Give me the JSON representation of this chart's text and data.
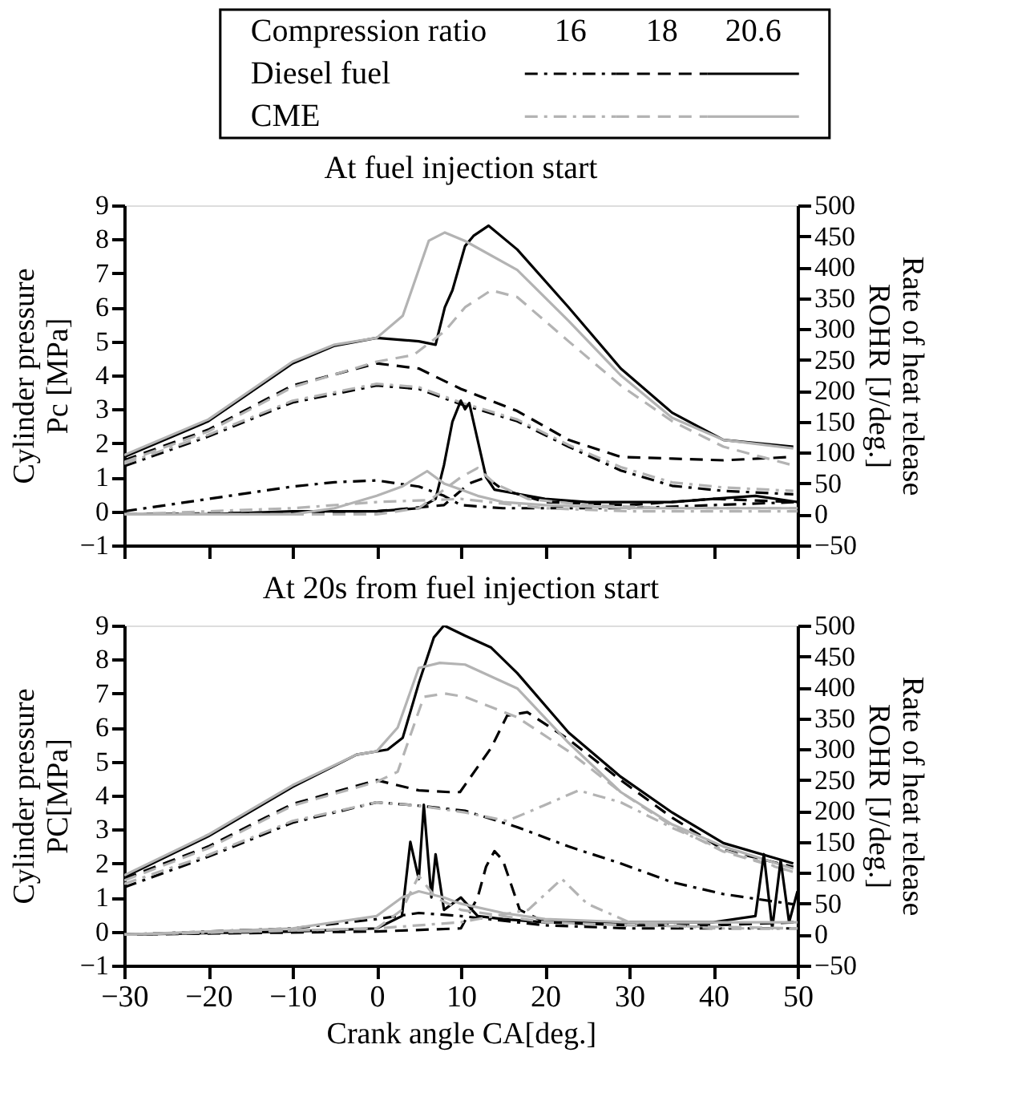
{
  "chart_data": [
    {
      "type": "line",
      "title": "At fuel injection start",
      "ylabel": "Cylinder pressure\nPc [MPa]",
      "y2label": "Rate of heat release\nROHR [J/deg.]",
      "legend_title": "Compression ratio",
      "annotations": [
        "16",
        "18",
        "20.6",
        "Diesel fuel",
        "CME"
      ],
      "tick_labels": "y",
      "grid": false,
      "xlim": [
        -30,
        50
      ],
      "xticks": [
        -30,
        -20,
        -10,
        0,
        10,
        20,
        30,
        40,
        50
      ],
      "ylim": [
        -1,
        9
      ],
      "yticks": [
        -1,
        0,
        1,
        2,
        3,
        4,
        5,
        6,
        7,
        8,
        9
      ],
      "y2lim": [
        -50,
        500
      ],
      "y2ticks": [
        -50,
        0,
        50,
        100,
        150,
        200,
        250,
        300,
        350,
        400,
        450,
        500
      ],
      "series": [
        {
          "color": "#000000",
          "line_style": "dashdot",
          "x": [
            -30,
            -20,
            -10,
            0,
            5,
            10,
            16.7,
            22.8,
            29,
            35.1,
            41.2,
            49.5
          ],
          "values": [
            1.33,
            2.2,
            3.2,
            3.7,
            3.6,
            3.15,
            2.65,
            1.9,
            1.2,
            0.75,
            0.6,
            0.5
          ]
        },
        {
          "color": "#000000",
          "line_style": "dashed",
          "x": [
            -30,
            -20,
            -10,
            0,
            5,
            10,
            16.7,
            22.8,
            29,
            35.1,
            41.2,
            49.5
          ],
          "values": [
            1.5,
            2.4,
            3.7,
            4.35,
            4.2,
            3.6,
            2.95,
            2.1,
            1.6,
            1.55,
            1.5,
            1.6
          ]
        },
        {
          "color": "#000000",
          "line_style": "solid",
          "x": [
            -30,
            -20,
            -10,
            -5,
            0,
            5,
            7,
            8.1,
            9,
            10.5,
            11.5,
            13.3,
            16.7,
            22.8,
            29,
            35.1,
            41.2,
            49.5
          ],
          "values": [
            1.6,
            2.65,
            4.35,
            4.87,
            5.1,
            5.0,
            4.9,
            6.0,
            6.5,
            7.8,
            8.1,
            8.4,
            7.7,
            6.0,
            4.2,
            2.9,
            2.1,
            1.9
          ]
        },
        {
          "color": "#b3b3b3",
          "line_style": "dashdot",
          "x": [
            -30,
            -20,
            -10,
            0,
            5,
            10,
            16.7,
            22.8,
            29,
            35.1,
            41.2,
            49.5
          ],
          "values": [
            1.4,
            2.25,
            3.25,
            3.75,
            3.65,
            3.2,
            2.7,
            1.95,
            1.3,
            0.85,
            0.7,
            0.6
          ]
        },
        {
          "color": "#b3b3b3",
          "line_style": "dashed",
          "x": [
            -30,
            -20,
            -10,
            0,
            4.4,
            8.1,
            10.5,
            13.6,
            16.7,
            22.8,
            29,
            35.1,
            41.2,
            49.5
          ],
          "values": [
            1.45,
            2.35,
            3.65,
            4.4,
            4.6,
            5.3,
            6.0,
            6.5,
            6.3,
            5.0,
            3.7,
            2.65,
            1.9,
            1.35
          ]
        },
        {
          "color": "#b3b3b3",
          "line_style": "solid",
          "x": [
            -30,
            -20,
            -10,
            -5,
            0,
            3.1,
            6.2,
            8.1,
            10.5,
            16.7,
            22.8,
            29,
            35.1,
            41.2,
            49.5
          ],
          "values": [
            1.65,
            2.7,
            4.4,
            4.9,
            5.1,
            5.75,
            7.96,
            8.2,
            7.95,
            7.1,
            5.6,
            4.0,
            2.75,
            2.1,
            1.85
          ]
        },
        {
          "axis": "y2",
          "color": "#000000",
          "line_style": "dashdot",
          "x": [
            -30,
            -20,
            -10,
            -5,
            0,
            5,
            8,
            10,
            15,
            20,
            30,
            40,
            50
          ],
          "values": [
            5,
            25,
            45,
            52,
            55,
            45,
            30,
            15,
            10,
            10,
            10,
            15,
            20
          ]
        },
        {
          "axis": "y2",
          "color": "#000000",
          "line_style": "dashed",
          "x": [
            -30,
            0,
            8,
            11,
            13,
            15,
            20,
            30,
            40,
            50
          ],
          "values": [
            0,
            5,
            15,
            50,
            60,
            40,
            20,
            15,
            25,
            20
          ]
        },
        {
          "axis": "y2",
          "color": "#000000",
          "line_style": "solid",
          "x": [
            -30,
            -20,
            -10,
            0,
            5,
            7,
            8,
            9,
            10,
            10.5,
            11,
            12,
            13,
            14,
            16,
            20,
            25,
            30,
            35,
            40,
            45,
            50
          ],
          "values": [
            0,
            0,
            5,
            5,
            10,
            25,
            80,
            150,
            184,
            170,
            180,
            120,
            60,
            40,
            35,
            25,
            20,
            20,
            20,
            25,
            30,
            20
          ]
        },
        {
          "axis": "y2",
          "color": "#b3b3b3",
          "line_style": "dashdot",
          "x": [
            -30,
            -10,
            0,
            10,
            20,
            30,
            50
          ],
          "values": [
            0,
            10,
            20,
            25,
            10,
            5,
            5
          ]
        },
        {
          "axis": "y2",
          "color": "#b3b3b3",
          "line_style": "dashed",
          "x": [
            -30,
            0,
            5,
            10,
            12,
            14,
            18,
            25,
            35,
            50
          ],
          "values": [
            0,
            0,
            10,
            60,
            75,
            50,
            25,
            15,
            10,
            10
          ]
        },
        {
          "axis": "y2",
          "color": "#b3b3b3",
          "line_style": "solid",
          "x": [
            -30,
            -10,
            -5,
            0,
            3,
            6,
            8,
            10,
            12,
            15,
            20,
            30,
            40,
            50
          ],
          "values": [
            0,
            0,
            10,
            30,
            45,
            70,
            50,
            40,
            30,
            20,
            15,
            10,
            10,
            10
          ]
        }
      ]
    },
    {
      "type": "line",
      "title": "At 20s from fuel injection start",
      "xlabel": "Crank angle CA[deg.]",
      "ylabel": "Cylinder pressure\nPC[MPa]",
      "y2label": "Rate of heat release\nROHR [J/deg.]",
      "grid": false,
      "xlim": [
        -30,
        50
      ],
      "xticks": [
        -30,
        -20,
        -10,
        0,
        10,
        20,
        30,
        40,
        50
      ],
      "ylim": [
        -1,
        9
      ],
      "yticks": [
        -1,
        0,
        1,
        2,
        3,
        4,
        5,
        6,
        7,
        8,
        9
      ],
      "y2lim": [
        -50,
        500
      ],
      "y2ticks": [
        -50,
        0,
        50,
        100,
        150,
        200,
        250,
        300,
        350,
        400,
        450,
        500
      ],
      "series": [
        {
          "color": "#000000",
          "line_style": "dashdot",
          "x": [
            -30,
            -20,
            -10,
            0,
            5,
            10.5,
            16.7,
            22.8,
            29,
            35.1,
            41.2,
            49.5
          ],
          "values": [
            1.3,
            2.2,
            3.2,
            3.8,
            3.7,
            3.55,
            3.07,
            2.5,
            2.0,
            1.45,
            1.1,
            0.8
          ]
        },
        {
          "color": "#000000",
          "line_style": "dashed",
          "x": [
            -30,
            -20,
            -10,
            0,
            5,
            8.6,
            9.9,
            13.6,
            15.5,
            17.9,
            22.8,
            29,
            35.1,
            41.2,
            49.5
          ],
          "values": [
            1.55,
            2.5,
            3.75,
            4.45,
            4.15,
            4.1,
            4.1,
            5.4,
            6.35,
            6.45,
            5.65,
            4.45,
            3.35,
            2.4,
            1.9
          ]
        },
        {
          "color": "#000000",
          "line_style": "solid",
          "x": [
            -30,
            -20,
            -10,
            -2.4,
            1.3,
            3.1,
            5,
            6.8,
            8,
            10.5,
            13.6,
            16.7,
            22.8,
            29,
            35.1,
            41.2,
            49.5
          ],
          "values": [
            1.6,
            2.8,
            4.25,
            5.2,
            5.35,
            5.7,
            7.3,
            8.65,
            9.0,
            8.7,
            8.35,
            7.6,
            5.85,
            4.55,
            3.5,
            2.6,
            2.0
          ]
        },
        {
          "color": "#b3b3b3",
          "line_style": "dashdot",
          "x": [
            -30,
            -20,
            -10,
            0,
            5,
            10.5,
            15.5,
            19.8,
            24,
            29,
            35.1,
            41.2,
            49.5
          ],
          "values": [
            1.4,
            2.25,
            3.25,
            3.8,
            3.7,
            3.5,
            3.25,
            3.7,
            4.15,
            3.8,
            3.05,
            2.4,
            1.75
          ]
        },
        {
          "color": "#b3b3b3",
          "line_style": "dashed",
          "x": [
            -30,
            -20,
            -10,
            0,
            2.5,
            5.6,
            8.1,
            10.5,
            16.7,
            22.8,
            29,
            35.1,
            41.2,
            49.5
          ],
          "values": [
            1.5,
            2.45,
            3.7,
            4.4,
            4.7,
            6.9,
            7.0,
            6.9,
            6.3,
            5.3,
            4.1,
            3.1,
            2.35,
            1.75
          ]
        },
        {
          "color": "#b3b3b3",
          "line_style": "solid",
          "x": [
            -30,
            -20,
            -10,
            -2.4,
            0,
            2.5,
            5,
            7.5,
            10.5,
            16.7,
            22.8,
            29,
            35.1,
            41.2,
            49.5
          ],
          "values": [
            1.65,
            2.85,
            4.3,
            5.2,
            5.3,
            6.0,
            7.75,
            7.9,
            7.85,
            7.15,
            5.55,
            4.1,
            3.15,
            2.5,
            1.85
          ]
        },
        {
          "axis": "y2",
          "color": "#000000",
          "line_style": "dashdot",
          "x": [
            -30,
            -10,
            0,
            5,
            10,
            20,
            30,
            50
          ],
          "values": [
            0,
            10,
            25,
            35,
            30,
            15,
            10,
            10
          ]
        },
        {
          "axis": "y2",
          "color": "#000000",
          "line_style": "dashed",
          "x": [
            -30,
            0,
            10,
            12,
            13,
            14,
            15,
            16,
            17,
            20,
            30,
            40,
            50
          ],
          "values": [
            0,
            5,
            10,
            60,
            110,
            135,
            120,
            80,
            40,
            20,
            15,
            15,
            20
          ]
        },
        {
          "axis": "y2",
          "color": "#000000",
          "line_style": "solid",
          "x": [
            -30,
            -10,
            0,
            3,
            4,
            5,
            5.6,
            6.5,
            7,
            8,
            10,
            12,
            15,
            20,
            30,
            40,
            45,
            46,
            47,
            48,
            49,
            50
          ],
          "values": [
            0,
            5,
            10,
            30,
            150,
            90,
            210,
            60,
            130,
            40,
            60,
            30,
            25,
            20,
            20,
            20,
            30,
            130,
            10,
            120,
            20,
            70
          ]
        },
        {
          "axis": "y2",
          "color": "#b3b3b3",
          "line_style": "dashdot",
          "x": [
            -30,
            0,
            10,
            18,
            22,
            25,
            30,
            40,
            50
          ],
          "values": [
            0,
            10,
            20,
            40,
            90,
            50,
            20,
            10,
            10
          ]
        },
        {
          "axis": "y2",
          "color": "#b3b3b3",
          "line_style": "dashed",
          "x": [
            -30,
            0,
            3,
            5,
            7,
            10,
            15,
            20,
            30,
            50
          ],
          "values": [
            0,
            10,
            40,
            95,
            60,
            40,
            30,
            20,
            15,
            10
          ]
        },
        {
          "axis": "y2",
          "color": "#b3b3b3",
          "line_style": "solid",
          "x": [
            -30,
            -10,
            0,
            3,
            5,
            8,
            10,
            15,
            20,
            30,
            40,
            50
          ],
          "values": [
            0,
            10,
            30,
            60,
            70,
            60,
            50,
            35,
            25,
            20,
            20,
            20
          ]
        }
      ]
    }
  ]
}
